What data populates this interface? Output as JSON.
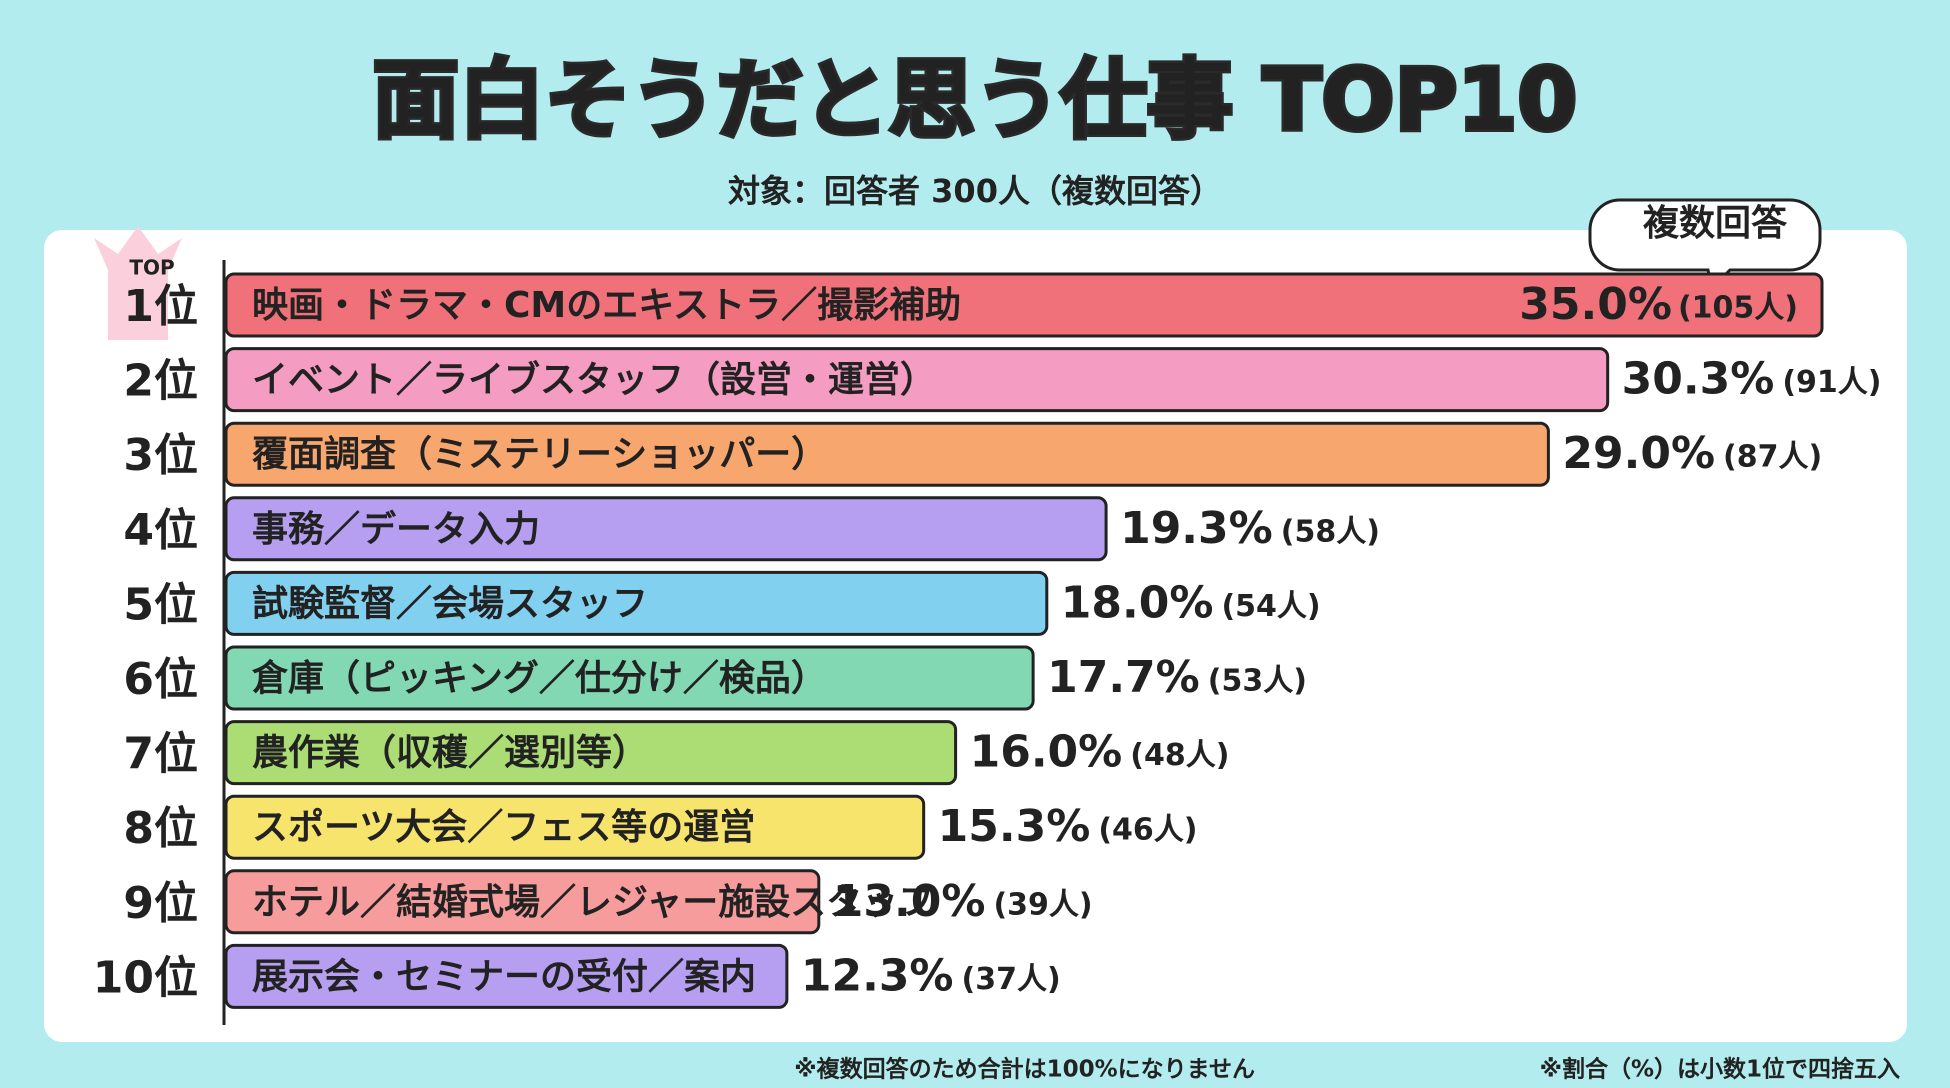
{
  "chart_data": {
    "type": "bar",
    "orientation": "horizontal",
    "title": "面白そうだと思う仕事 TOP10",
    "subtitle": "対象：回答者 300人（複数回答）",
    "badge": "複数回答",
    "top_label": "TOP",
    "ranks": [
      "1位",
      "2位",
      "3位",
      "4位",
      "5位",
      "6位",
      "7位",
      "8位",
      "9位",
      "10位"
    ],
    "categories": [
      "映画・ドラマ・CMのエキストラ／撮影補助",
      "イベント／ライブスタッフ（設営・運営）",
      "覆面調査（ミステリーショッパー）",
      "事務／データ入力",
      "試験監督／会場スタッフ",
      "倉庫（ピッキング／仕分け／検品）",
      "農作業（収穫／選別等）",
      "スポーツ大会／フェス等の運営",
      "ホテル／結婚式場／レジャー施設スタッフ",
      "展示会・セミナーの受付／案内"
    ],
    "values": [
      35.0,
      30.3,
      29.0,
      19.3,
      18.0,
      17.7,
      16.0,
      15.3,
      13.0,
      12.3
    ],
    "value_labels": [
      "35.0%",
      "30.3%",
      "29.0%",
      "19.3%",
      "18.0%",
      "17.7%",
      "16.0%",
      "15.3%",
      "13.0%",
      "12.3%"
    ],
    "counts": [
      105,
      91,
      87,
      58,
      54,
      53,
      48,
      46,
      39,
      37
    ],
    "count_labels": [
      "(105人)",
      "(91人)",
      "(87人)",
      "(58人)",
      "(54人)",
      "(53人)",
      "(48人)",
      "(46人)",
      "(39人)",
      "(37人)"
    ],
    "colors": [
      "#f0717a",
      "#f59cc3",
      "#f7a66e",
      "#b69ef0",
      "#82d0f0",
      "#82d8b3",
      "#abdd74",
      "#f7e46c",
      "#f69c9c",
      "#b69ef0"
    ],
    "xlim": [
      0,
      35
    ],
    "notes": [
      "※複数回答のため合計は100%になりません",
      "※割合（%）は小数1位で四捨五入"
    ]
  }
}
